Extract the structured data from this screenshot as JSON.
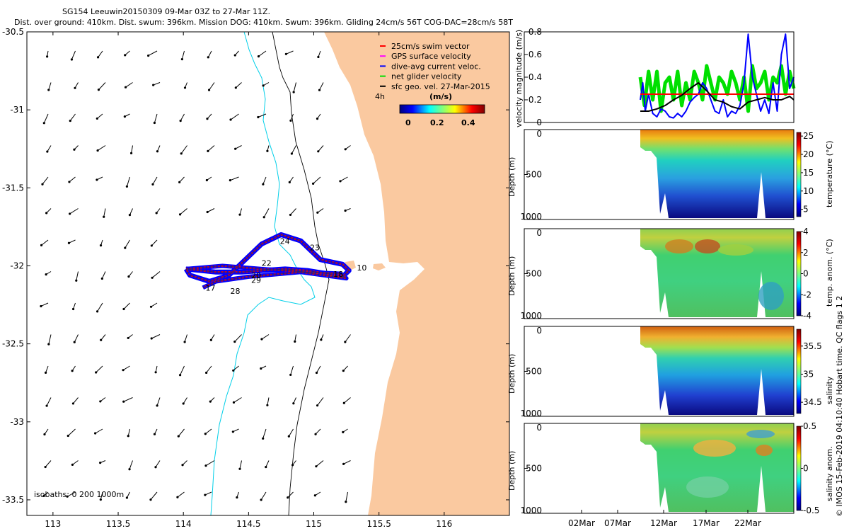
{
  "title": {
    "line1": "SG154 Leeuwin20150309 09-Mar 03Z to 27-Mar 11Z.",
    "line2": "Dist. over ground: 410km. Dist. swum: 396km. Mission DOG: 410km. Swum: 396km. Gliding 24cm/s 56T COG-DAC=28cm/s 58T"
  },
  "side_credit": "© IMOS 15-Feb-2019 04:10:40 Hobart time. QC flags 1  2",
  "colors": {
    "land": "#fac9a0",
    "swim_vector": "#ff0000",
    "gps_velocity": "#ff00ff",
    "dac": "#0000ff",
    "net_velocity": "#00e000",
    "sfc_geo": "#000000",
    "isobath_200": "#00cfe8"
  },
  "chart_data": [
    {
      "type": "map",
      "name": "glider-track-map",
      "xlim": [
        112.8,
        116.5
      ],
      "ylim": [
        -33.6,
        -30.5
      ],
      "xticks": [
        "113",
        "113.5",
        "114",
        "114.5",
        "115",
        "115.5",
        "116"
      ],
      "yticks": [
        "-30.5",
        "-31",
        "-31.5",
        "-32",
        "-32.5",
        "-33",
        "-33.5"
      ],
      "legend": [
        {
          "label": "25cm/s swim vector",
          "color": "#ff0000"
        },
        {
          "label": "GPS surface velocity",
          "color": "#ff00ff"
        },
        {
          "label": "dive-avg current veloc.",
          "color": "#0000ff"
        },
        {
          "label": "net glider velocity",
          "color": "#00e000"
        },
        {
          "label": "sfc geo. vel. 27-Mar-2015",
          "color": "#000000"
        }
      ],
      "legend_position": "top-right",
      "colorbar": {
        "label": "(m/s)",
        "ticks": [
          "0",
          "0.2",
          "0.4"
        ],
        "range": [
          0,
          0.5
        ],
        "note": "4h"
      },
      "isobaths_label": "isobaths: 0   200  1000m",
      "track_day_labels": [
        {
          "text": "24",
          "lon": 114.74,
          "lat": -31.86
        },
        {
          "text": "23",
          "lon": 114.97,
          "lat": -31.9
        },
        {
          "text": "10",
          "lon": 115.33,
          "lat": -32.03
        },
        {
          "text": "20",
          "lon": 114.52,
          "lat": -32.08
        },
        {
          "text": "29",
          "lon": 114.52,
          "lat": -32.11
        },
        {
          "text": "28",
          "lon": 114.36,
          "lat": -32.18
        },
        {
          "text": "17",
          "lon": 114.17,
          "lat": -32.16
        },
        {
          "text": "22",
          "lon": 114.6,
          "lat": -32.0
        },
        {
          "text": "18",
          "lon": 115.15,
          "lat": -32.07
        }
      ],
      "track_path": [
        [
          114.02,
          -32.02
        ],
        [
          114.25,
          -32.04
        ],
        [
          114.45,
          -32.04
        ],
        [
          114.6,
          -32.03
        ],
        [
          114.78,
          -32.02
        ],
        [
          114.95,
          -32.03
        ],
        [
          115.1,
          -32.05
        ],
        [
          115.22,
          -32.07
        ],
        [
          115.27,
          -32.03
        ],
        [
          115.22,
          -31.99
        ],
        [
          115.05,
          -31.96
        ],
        [
          114.9,
          -31.84
        ],
        [
          114.75,
          -31.8
        ],
        [
          114.6,
          -31.86
        ],
        [
          114.45,
          -31.98
        ],
        [
          114.35,
          -32.06
        ],
        [
          114.2,
          -32.1
        ],
        [
          114.05,
          -32.06
        ],
        [
          114.02,
          -32.02
        ]
      ],
      "track_return": [
        [
          114.02,
          -32.02
        ],
        [
          114.3,
          -32.0
        ],
        [
          114.6,
          -32.02
        ],
        [
          114.95,
          -32.04
        ],
        [
          115.2,
          -32.05
        ],
        [
          115.25,
          -32.08
        ],
        [
          114.9,
          -32.04
        ],
        [
          114.5,
          -32.07
        ],
        [
          114.25,
          -32.1
        ],
        [
          114.15,
          -32.14
        ]
      ]
    },
    {
      "type": "line",
      "name": "velocity-magnitude",
      "ylabel": "velocity magnitude (m/s)",
      "ylim": [
        0,
        0.8
      ],
      "yticks": [
        "0",
        "0.2",
        "0.4",
        "0.6",
        "0.8"
      ],
      "x_day_range": [
        0,
        18.5
      ],
      "series": [
        {
          "name": "net glider velocity",
          "color": "#00e000",
          "x": [
            0,
            0.5,
            1,
            1.5,
            2,
            2.5,
            3,
            3.5,
            4,
            4.5,
            5,
            5.5,
            6,
            6.5,
            7,
            7.5,
            8,
            8.5,
            9,
            9.5,
            10,
            10.5,
            11,
            11.5,
            12,
            12.5,
            13,
            13.5,
            14,
            14.5,
            15,
            15.5,
            16,
            16.5,
            17,
            17.5,
            18,
            18.5
          ],
          "values": [
            0.4,
            0.15,
            0.45,
            0.2,
            0.45,
            0.1,
            0.35,
            0.4,
            0.2,
            0.45,
            0.15,
            0.35,
            0.2,
            0.45,
            0.35,
            0.2,
            0.5,
            0.35,
            0.2,
            0.4,
            0.35,
            0.25,
            0.45,
            0.35,
            0.2,
            0.4,
            0.1,
            0.5,
            0.3,
            0.35,
            0.45,
            0.2,
            0.4,
            0.35,
            0.5,
            0.25,
            0.45,
            0.3
          ]
        },
        {
          "name": "dive-avg current veloc.",
          "color": "#0000ff",
          "x": [
            0,
            0.3,
            0.6,
            1,
            1.5,
            2,
            2.5,
            3,
            3.5,
            4,
            4.5,
            5,
            5.5,
            6,
            6.5,
            7,
            7.5,
            8,
            8.5,
            9,
            9.5,
            10,
            10.5,
            11,
            11.5,
            12,
            12.5,
            13,
            13.5,
            14,
            14.5,
            15,
            15.5,
            16,
            16.5,
            17,
            17.5,
            18,
            18.5
          ],
          "values": [
            0.2,
            0.35,
            0.1,
            0.25,
            0.08,
            0.05,
            0.12,
            0.1,
            0.05,
            0.04,
            0.08,
            0.05,
            0.1,
            0.18,
            0.22,
            0.25,
            0.35,
            0.3,
            0.2,
            0.1,
            0.08,
            0.2,
            0.05,
            0.1,
            0.08,
            0.15,
            0.35,
            0.78,
            0.4,
            0.25,
            0.1,
            0.2,
            0.08,
            0.35,
            0.1,
            0.6,
            0.78,
            0.3,
            0.4
          ]
        },
        {
          "name": "swim vector",
          "color": "#ff0000",
          "x": [
            0,
            18.5
          ],
          "values": [
            0.25,
            0.25
          ]
        },
        {
          "name": "sfc geo. vel.",
          "color": "#000000",
          "x": [
            0,
            1,
            2,
            3,
            4,
            5,
            6,
            7,
            8,
            9,
            10,
            11,
            12,
            13,
            14,
            15,
            16,
            17,
            18,
            18.5
          ],
          "values": [
            0.1,
            0.1,
            0.12,
            0.15,
            0.2,
            0.24,
            0.3,
            0.35,
            0.28,
            0.2,
            0.18,
            0.14,
            0.12,
            0.18,
            0.2,
            0.22,
            0.2,
            0.2,
            0.23,
            0.2
          ]
        }
      ]
    },
    {
      "type": "heatmap",
      "name": "temperature-section",
      "ylabel": "Depth (m)",
      "yticks": [
        "0",
        "500",
        "1000"
      ],
      "ylim": [
        0,
        1000
      ],
      "colorbar_label": "temperature (°C)",
      "colorbar_ticks": [
        "25",
        "20",
        "15",
        "10",
        "5"
      ],
      "crange": [
        3,
        26
      ]
    },
    {
      "type": "heatmap",
      "name": "temperature-anomaly-section",
      "ylabel": "Depth (m)",
      "yticks": [
        "0",
        "500",
        "1000"
      ],
      "ylim": [
        0,
        1000
      ],
      "colorbar_label": "temp. anom. (°C)",
      "colorbar_ticks": [
        "4",
        "2",
        "0",
        "-2",
        "-4"
      ],
      "crange": [
        -4,
        4
      ]
    },
    {
      "type": "heatmap",
      "name": "salinity-section",
      "ylabel": "Depth (m)",
      "yticks": [
        "0",
        "500",
        "1000"
      ],
      "ylim": [
        0,
        1000
      ],
      "colorbar_label": "salinity",
      "colorbar_ticks": [
        "35.5",
        "35",
        "34.5"
      ],
      "crange": [
        34.3,
        35.8
      ]
    },
    {
      "type": "heatmap",
      "name": "salinity-anomaly-section",
      "ylabel": "Depth (m)",
      "yticks": [
        "0",
        "500",
        "1000"
      ],
      "ylim": [
        0,
        1000
      ],
      "colorbar_label": "salinity anom.",
      "colorbar_ticks": [
        "0.5",
        "0",
        "-0.5"
      ],
      "crange": [
        -0.5,
        0.5
      ]
    },
    {
      "type": "axis",
      "name": "time-axis",
      "xticks": [
        "02Mar",
        "07Mar",
        "12Mar",
        "17Mar",
        "22Mar"
      ]
    }
  ]
}
